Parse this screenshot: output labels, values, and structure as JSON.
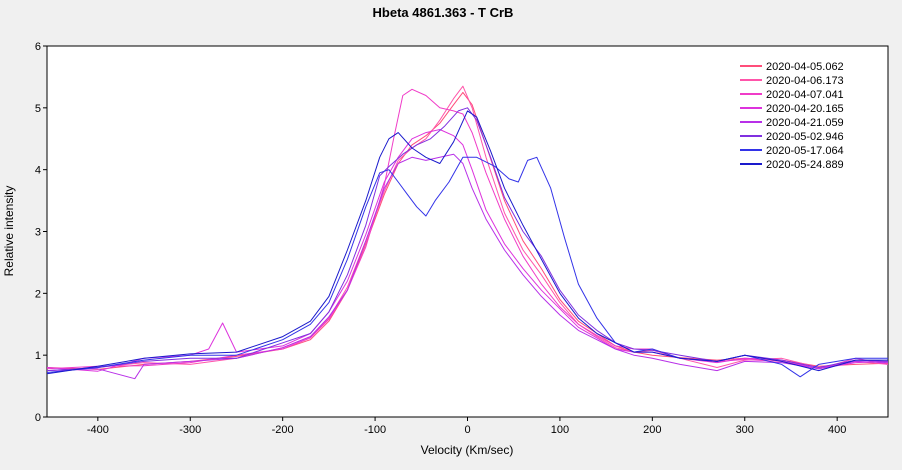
{
  "chart_data": {
    "type": "line",
    "title": "Hbeta 4861.363 - T CrB",
    "xlabel": "Velocity (Km/sec)",
    "ylabel": "Relative intensity",
    "xlim": [
      -455,
      455
    ],
    "ylim": [
      0,
      6
    ],
    "x_ticks": [
      -400,
      -300,
      -200,
      -100,
      0,
      100,
      200,
      300,
      400
    ],
    "y_ticks": [
      0,
      1,
      2,
      3,
      4,
      5,
      6
    ],
    "legend_position": "top-right",
    "grid": false,
    "series": [
      {
        "name": "2020-04-05.062",
        "color": "#ff4d7a",
        "points": [
          [
            -455,
            0.8
          ],
          [
            -400,
            0.77
          ],
          [
            -350,
            0.85
          ],
          [
            -300,
            0.9
          ],
          [
            -250,
            0.98
          ],
          [
            -200,
            1.1
          ],
          [
            -170,
            1.25
          ],
          [
            -150,
            1.55
          ],
          [
            -130,
            2.05
          ],
          [
            -110,
            2.8
          ],
          [
            -90,
            3.6
          ],
          [
            -75,
            4.1
          ],
          [
            -60,
            4.4
          ],
          [
            -45,
            4.55
          ],
          [
            -30,
            4.75
          ],
          [
            -15,
            5.05
          ],
          [
            -5,
            5.25
          ],
          [
            5,
            5.05
          ],
          [
            20,
            4.4
          ],
          [
            40,
            3.5
          ],
          [
            60,
            2.85
          ],
          [
            80,
            2.4
          ],
          [
            100,
            1.9
          ],
          [
            120,
            1.55
          ],
          [
            140,
            1.35
          ],
          [
            160,
            1.15
          ],
          [
            180,
            1.05
          ],
          [
            200,
            1.0
          ],
          [
            230,
            0.96
          ],
          [
            270,
            0.92
          ],
          [
            300,
            0.95
          ],
          [
            340,
            0.92
          ],
          [
            380,
            0.82
          ],
          [
            420,
            0.85
          ],
          [
            455,
            0.87
          ]
        ]
      },
      {
        "name": "2020-04-06.173",
        "color": "#ff55aa",
        "points": [
          [
            -455,
            0.75
          ],
          [
            -400,
            0.8
          ],
          [
            -350,
            0.88
          ],
          [
            -300,
            0.85
          ],
          [
            -250,
            0.95
          ],
          [
            -200,
            1.12
          ],
          [
            -170,
            1.3
          ],
          [
            -150,
            1.6
          ],
          [
            -130,
            2.1
          ],
          [
            -110,
            2.85
          ],
          [
            -90,
            3.65
          ],
          [
            -75,
            4.15
          ],
          [
            -60,
            4.35
          ],
          [
            -45,
            4.5
          ],
          [
            -30,
            4.8
          ],
          [
            -15,
            5.15
          ],
          [
            -5,
            5.35
          ],
          [
            5,
            5.0
          ],
          [
            20,
            4.2
          ],
          [
            40,
            3.3
          ],
          [
            60,
            2.7
          ],
          [
            80,
            2.3
          ],
          [
            100,
            1.85
          ],
          [
            120,
            1.5
          ],
          [
            140,
            1.3
          ],
          [
            160,
            1.12
          ],
          [
            180,
            1.05
          ],
          [
            200,
            1.08
          ],
          [
            230,
            0.95
          ],
          [
            270,
            0.8
          ],
          [
            300,
            0.92
          ],
          [
            340,
            0.95
          ],
          [
            380,
            0.8
          ],
          [
            420,
            0.9
          ],
          [
            455,
            0.85
          ]
        ]
      },
      {
        "name": "2020-04-07.041",
        "color": "#f03cc8",
        "points": [
          [
            -455,
            0.78
          ],
          [
            -400,
            0.82
          ],
          [
            -350,
            0.83
          ],
          [
            -300,
            0.88
          ],
          [
            -250,
            1.0
          ],
          [
            -200,
            1.1
          ],
          [
            -170,
            1.28
          ],
          [
            -150,
            1.58
          ],
          [
            -130,
            2.05
          ],
          [
            -110,
            2.75
          ],
          [
            -90,
            3.75
          ],
          [
            -80,
            4.5
          ],
          [
            -70,
            5.2
          ],
          [
            -60,
            5.3
          ],
          [
            -45,
            5.2
          ],
          [
            -30,
            5.0
          ],
          [
            -15,
            4.95
          ],
          [
            -5,
            4.9
          ],
          [
            5,
            4.6
          ],
          [
            20,
            3.95
          ],
          [
            40,
            3.2
          ],
          [
            60,
            2.6
          ],
          [
            80,
            2.15
          ],
          [
            100,
            1.78
          ],
          [
            120,
            1.5
          ],
          [
            140,
            1.32
          ],
          [
            160,
            1.15
          ],
          [
            180,
            1.1
          ],
          [
            200,
            1.1
          ],
          [
            230,
            0.95
          ],
          [
            270,
            0.9
          ],
          [
            300,
            0.93
          ],
          [
            340,
            0.9
          ],
          [
            380,
            0.78
          ],
          [
            420,
            0.95
          ],
          [
            455,
            0.85
          ]
        ]
      },
      {
        "name": "2020-04-20.165",
        "color": "#dd33dd",
        "points": [
          [
            -455,
            0.8
          ],
          [
            -400,
            0.74
          ],
          [
            -350,
            0.95
          ],
          [
            -300,
            1.0
          ],
          [
            -280,
            1.1
          ],
          [
            -265,
            1.52
          ],
          [
            -250,
            1.05
          ],
          [
            -200,
            1.15
          ],
          [
            -170,
            1.35
          ],
          [
            -150,
            1.7
          ],
          [
            -130,
            2.2
          ],
          [
            -110,
            2.95
          ],
          [
            -90,
            3.8
          ],
          [
            -75,
            4.2
          ],
          [
            -60,
            4.5
          ],
          [
            -45,
            4.6
          ],
          [
            -30,
            4.65
          ],
          [
            -15,
            4.55
          ],
          [
            -5,
            4.4
          ],
          [
            5,
            4.0
          ],
          [
            20,
            3.35
          ],
          [
            40,
            2.8
          ],
          [
            60,
            2.4
          ],
          [
            80,
            2.05
          ],
          [
            100,
            1.75
          ],
          [
            120,
            1.45
          ],
          [
            140,
            1.28
          ],
          [
            160,
            1.1
          ],
          [
            180,
            1.05
          ],
          [
            200,
            1.05
          ],
          [
            230,
            0.95
          ],
          [
            270,
            0.88
          ],
          [
            300,
            0.95
          ],
          [
            340,
            0.92
          ],
          [
            380,
            0.78
          ],
          [
            420,
            0.88
          ],
          [
            455,
            0.9
          ]
        ]
      },
      {
        "name": "2020-04-21.059",
        "color": "#b830e8",
        "points": [
          [
            -455,
            0.75
          ],
          [
            -400,
            0.78
          ],
          [
            -360,
            0.62
          ],
          [
            -350,
            0.85
          ],
          [
            -300,
            0.9
          ],
          [
            -250,
            0.95
          ],
          [
            -200,
            1.12
          ],
          [
            -170,
            1.3
          ],
          [
            -150,
            1.62
          ],
          [
            -130,
            2.05
          ],
          [
            -110,
            2.85
          ],
          [
            -90,
            3.7
          ],
          [
            -75,
            4.1
          ],
          [
            -60,
            4.2
          ],
          [
            -45,
            4.15
          ],
          [
            -30,
            4.2
          ],
          [
            -15,
            4.25
          ],
          [
            -5,
            4.1
          ],
          [
            5,
            3.7
          ],
          [
            20,
            3.2
          ],
          [
            40,
            2.7
          ],
          [
            60,
            2.3
          ],
          [
            80,
            1.95
          ],
          [
            100,
            1.65
          ],
          [
            120,
            1.4
          ],
          [
            140,
            1.25
          ],
          [
            160,
            1.1
          ],
          [
            180,
            1.0
          ],
          [
            200,
            0.95
          ],
          [
            230,
            0.85
          ],
          [
            270,
            0.75
          ],
          [
            300,
            0.9
          ],
          [
            340,
            0.88
          ],
          [
            380,
            0.78
          ],
          [
            420,
            0.9
          ],
          [
            455,
            0.88
          ]
        ]
      },
      {
        "name": "2020-05-02.946",
        "color": "#8030e0",
        "points": [
          [
            -455,
            0.75
          ],
          [
            -400,
            0.8
          ],
          [
            -350,
            0.9
          ],
          [
            -300,
            0.95
          ],
          [
            -250,
            0.95
          ],
          [
            -200,
            1.2
          ],
          [
            -170,
            1.35
          ],
          [
            -150,
            1.7
          ],
          [
            -130,
            2.3
          ],
          [
            -110,
            3.1
          ],
          [
            -95,
            3.9
          ],
          [
            -85,
            4.05
          ],
          [
            -70,
            4.25
          ],
          [
            -55,
            4.4
          ],
          [
            -40,
            4.5
          ],
          [
            -25,
            4.7
          ],
          [
            -10,
            4.95
          ],
          [
            0,
            5.0
          ],
          [
            10,
            4.8
          ],
          [
            25,
            4.2
          ],
          [
            40,
            3.55
          ],
          [
            60,
            3.0
          ],
          [
            80,
            2.6
          ],
          [
            100,
            2.05
          ],
          [
            120,
            1.65
          ],
          [
            140,
            1.4
          ],
          [
            160,
            1.2
          ],
          [
            180,
            1.1
          ],
          [
            200,
            1.08
          ],
          [
            230,
            1.0
          ],
          [
            270,
            0.9
          ],
          [
            300,
            1.0
          ],
          [
            340,
            0.92
          ],
          [
            380,
            0.8
          ],
          [
            420,
            0.92
          ],
          [
            455,
            0.9
          ]
        ]
      },
      {
        "name": "2020-05-17.064",
        "color": "#3333e8",
        "points": [
          [
            -455,
            0.72
          ],
          [
            -400,
            0.8
          ],
          [
            -350,
            0.92
          ],
          [
            -300,
            1.0
          ],
          [
            -250,
            1.0
          ],
          [
            -200,
            1.25
          ],
          [
            -170,
            1.5
          ],
          [
            -150,
            1.85
          ],
          [
            -130,
            2.55
          ],
          [
            -110,
            3.4
          ],
          [
            -95,
            3.95
          ],
          [
            -85,
            4.0
          ],
          [
            -75,
            3.8
          ],
          [
            -65,
            3.6
          ],
          [
            -55,
            3.4
          ],
          [
            -45,
            3.25
          ],
          [
            -35,
            3.5
          ],
          [
            -20,
            3.8
          ],
          [
            -5,
            4.2
          ],
          [
            10,
            4.2
          ],
          [
            30,
            4.05
          ],
          [
            45,
            3.85
          ],
          [
            55,
            3.8
          ],
          [
            65,
            4.15
          ],
          [
            75,
            4.2
          ],
          [
            90,
            3.7
          ],
          [
            105,
            2.9
          ],
          [
            120,
            2.15
          ],
          [
            140,
            1.6
          ],
          [
            160,
            1.2
          ],
          [
            180,
            1.05
          ],
          [
            200,
            1.1
          ],
          [
            230,
            0.95
          ],
          [
            270,
            0.9
          ],
          [
            300,
            1.0
          ],
          [
            340,
            0.85
          ],
          [
            360,
            0.65
          ],
          [
            380,
            0.85
          ],
          [
            420,
            0.95
          ],
          [
            455,
            0.95
          ]
        ]
      },
      {
        "name": "2020-05-24.889",
        "color": "#1a1acc",
        "points": [
          [
            -455,
            0.7
          ],
          [
            -400,
            0.82
          ],
          [
            -350,
            0.95
          ],
          [
            -300,
            1.02
          ],
          [
            -250,
            1.05
          ],
          [
            -200,
            1.3
          ],
          [
            -170,
            1.55
          ],
          [
            -150,
            1.95
          ],
          [
            -130,
            2.7
          ],
          [
            -110,
            3.5
          ],
          [
            -95,
            4.2
          ],
          [
            -85,
            4.5
          ],
          [
            -75,
            4.6
          ],
          [
            -60,
            4.35
          ],
          [
            -45,
            4.2
          ],
          [
            -30,
            4.1
          ],
          [
            -15,
            4.45
          ],
          [
            0,
            4.95
          ],
          [
            10,
            4.85
          ],
          [
            25,
            4.3
          ],
          [
            40,
            3.7
          ],
          [
            60,
            3.1
          ],
          [
            80,
            2.55
          ],
          [
            100,
            2.0
          ],
          [
            120,
            1.6
          ],
          [
            140,
            1.35
          ],
          [
            160,
            1.2
          ],
          [
            180,
            1.05
          ],
          [
            200,
            1.05
          ],
          [
            230,
            0.95
          ],
          [
            270,
            0.9
          ],
          [
            300,
            1.0
          ],
          [
            340,
            0.9
          ],
          [
            380,
            0.75
          ],
          [
            420,
            0.92
          ],
          [
            455,
            0.92
          ]
        ]
      }
    ]
  }
}
